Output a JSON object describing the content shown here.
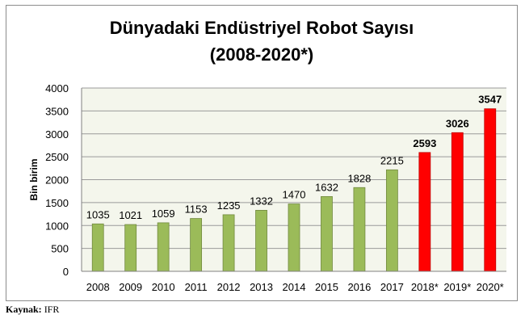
{
  "title": {
    "line1": "Dünyadaki Endüstriyel Robot Sayısı",
    "line2": "(2008-2020*)"
  },
  "source": {
    "label": "Kaynak:",
    "value": "IFR"
  },
  "colors": {
    "actual_bar": "#9bbb59",
    "actual_bar_border": "#71893f",
    "forecast_bar": "#ff0000",
    "forecast_bar_border": "#c00000",
    "plot_background": "#f4f6ec",
    "gridline": "#9a9a9a",
    "axis": "#808080"
  },
  "chart_data": {
    "type": "bar",
    "title": "Dünyadaki Endüstriyel Robot Sayısı (2008-2020*)",
    "xlabel": "",
    "ylabel": "Bin birim",
    "ylim": [
      0,
      4000
    ],
    "yticks": [
      0,
      500,
      1000,
      1500,
      2000,
      2500,
      3000,
      3500,
      4000
    ],
    "grid": true,
    "legend": "none",
    "categories": [
      "2008",
      "2009",
      "2010",
      "2011",
      "2012",
      "2013",
      "2014",
      "2015",
      "2016",
      "2017",
      "2018*",
      "2019*",
      "2020*"
    ],
    "values": [
      1035,
      1021,
      1059,
      1153,
      1235,
      1332,
      1470,
      1632,
      1828,
      2215,
      2593,
      3026,
      3547
    ],
    "forecast": [
      false,
      false,
      false,
      false,
      false,
      false,
      false,
      false,
      false,
      false,
      true,
      true,
      true
    ]
  }
}
